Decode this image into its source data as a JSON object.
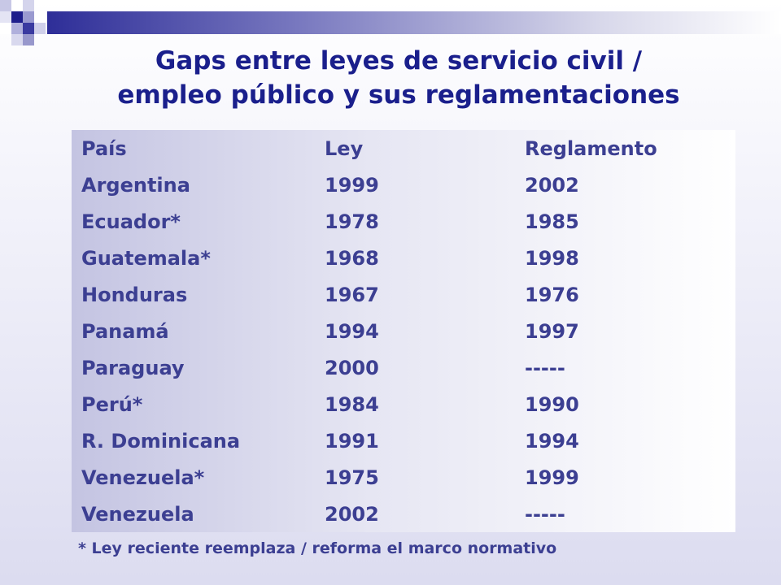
{
  "slide": {
    "title_line1": "Gaps entre leyes de servicio civil /",
    "title_line2": "empleo público y sus reglamentaciones",
    "footnote": "* Ley reciente reemplaza / reforma el marco normativo",
    "colors": {
      "title": "#1a1f8c",
      "text": "#3c3f92",
      "accent": "#2e2e98"
    }
  },
  "table": {
    "headers": [
      "País",
      "Ley",
      "Reglamento"
    ],
    "rows": [
      [
        "Argentina",
        "1999",
        "2002"
      ],
      [
        "Ecuador*",
        "1978",
        "1985"
      ],
      [
        "Guatemala*",
        "1968",
        "1998"
      ],
      [
        "Honduras",
        "1967",
        "1976"
      ],
      [
        "Panamá",
        "1994",
        "1997"
      ],
      [
        "Paraguay",
        "2000",
        "-----"
      ],
      [
        "Perú*",
        "1984",
        "1990"
      ],
      [
        "R. Dominicana",
        "1991",
        "1994"
      ],
      [
        "Venezuela*",
        "1975",
        "1999"
      ],
      [
        "Venezuela",
        "2002",
        "-----"
      ]
    ]
  }
}
